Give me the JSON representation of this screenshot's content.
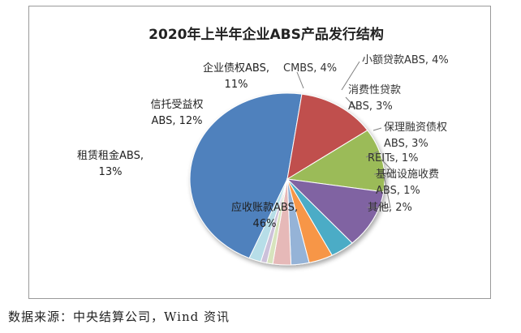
{
  "chart_data": {
    "type": "pie",
    "title": "2020年上半年企业ABS产品发行结构",
    "slices": [
      {
        "label_lines": [
          "应收账款ABS,",
          "46%"
        ],
        "value": 46,
        "color": "#4f81bd"
      },
      {
        "label_lines": [
          "租赁租金ABS,",
          "13%"
        ],
        "value": 13,
        "color": "#c0504d"
      },
      {
        "label_lines": [
          "信托受益权",
          "ABS, 12%"
        ],
        "value": 12,
        "color": "#9bbb59"
      },
      {
        "label_lines": [
          "企业债权ABS,",
          "11%"
        ],
        "value": 11,
        "color": "#8064a2"
      },
      {
        "label_lines": [
          "CMBS, 4%"
        ],
        "value": 4,
        "color": "#4bacc6"
      },
      {
        "label_lines": [
          "小额贷款ABS, 4%"
        ],
        "value": 4,
        "color": "#f79646"
      },
      {
        "label_lines": [
          "消费性贷款",
          "ABS, 3%"
        ],
        "value": 3,
        "color": "#95b3d7"
      },
      {
        "label_lines": [
          "保理融资债权",
          "ABS, 3%"
        ],
        "value": 3,
        "color": "#e6b9b8"
      },
      {
        "label_lines": [
          "REITs, 1%"
        ],
        "value": 1,
        "color": "#d7e4bd"
      },
      {
        "label_lines": [
          "基础设施收费",
          "ABS, 1%"
        ],
        "value": 1,
        "color": "#ccc1da"
      },
      {
        "label_lines": [
          "其他, 2%"
        ],
        "value": 2,
        "color": "#b7dee8"
      }
    ]
  },
  "source_note": "数据来源：中央结算公司，Wind 资讯"
}
